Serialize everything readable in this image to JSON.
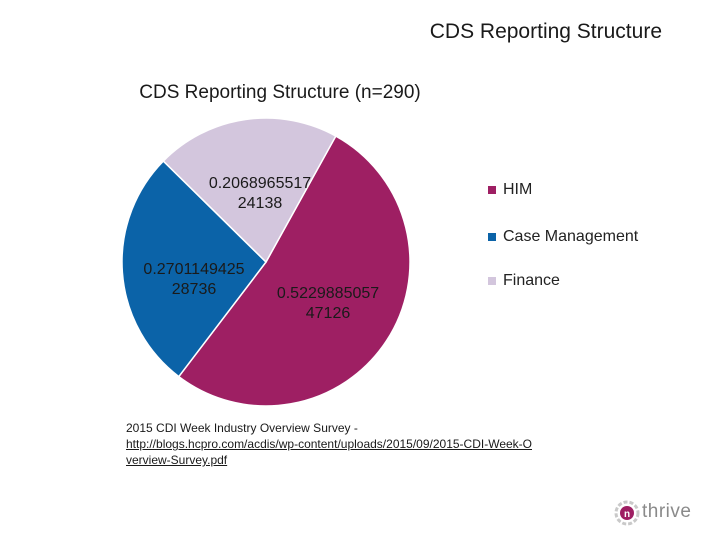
{
  "slide_title": "CDS Reporting Structure",
  "source": {
    "text": "2015 CDI Week Industry Overview Survey -",
    "link": "http://blogs.hcpro.com/acdis/wp-content/uploads/2015/09/2015-CDI-Week-Overview-Survey.pdf"
  },
  "logo": {
    "icon": "nthrive-n-icon",
    "text": "thrive"
  },
  "chart_data": {
    "type": "pie",
    "title": "CDS Reporting Structure (n=290)",
    "legend_position": "right",
    "slices": [
      {
        "name": "HIM",
        "value": 0.522988505747126,
        "label_line1": "0.5229885057",
        "label_line2": "47126",
        "color": "#9e1f63"
      },
      {
        "name": "Case Management",
        "value": 0.270114942528736,
        "label_line1": "0.2701149425",
        "label_line2": "28736",
        "color": "#0b63a8"
      },
      {
        "name": "Finance",
        "value": 0.206896551724138,
        "label_line1": "0.2068965517",
        "label_line2": "24138",
        "color": "#d3c6dd"
      }
    ]
  }
}
